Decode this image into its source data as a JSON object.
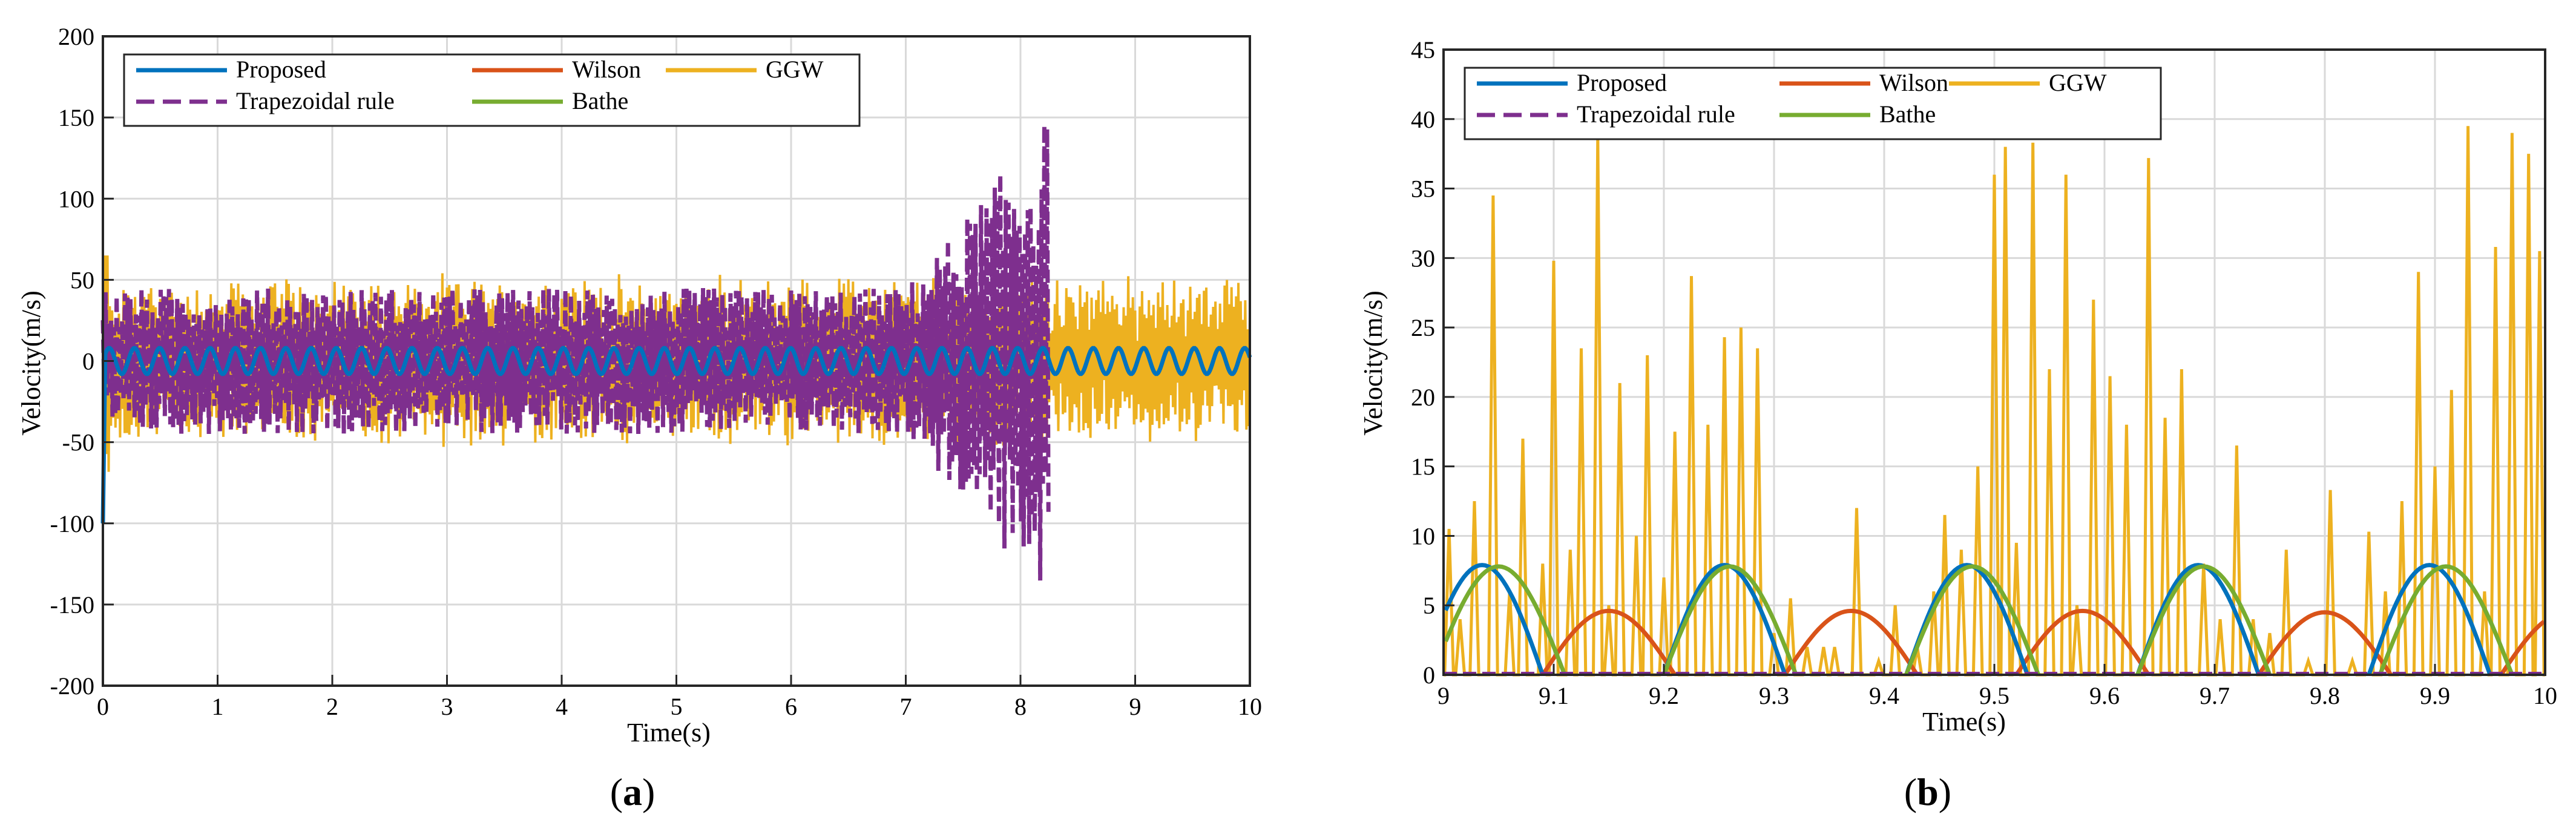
{
  "chart_data": [
    {
      "type": "line",
      "panel_label": "(a)",
      "caption_parts": [
        "(",
        "a",
        ")"
      ],
      "xlabel": "Time(s)",
      "ylabel": "Velocity(m/s)",
      "xlim": [
        0,
        10
      ],
      "ylim": [
        -200,
        200
      ],
      "xticks": [
        0,
        1,
        2,
        3,
        4,
        5,
        6,
        7,
        8,
        9,
        10
      ],
      "yticks": [
        -200,
        -150,
        -100,
        -50,
        0,
        50,
        100,
        150,
        200
      ],
      "grid": true,
      "legend_location": "top-left",
      "legend": [
        {
          "name": "Proposed",
          "color": "#0072BD",
          "style": "solid"
        },
        {
          "name": "Wilson",
          "color": "#D95319",
          "style": "solid"
        },
        {
          "name": "GGW",
          "color": "#EDB120",
          "style": "solid"
        },
        {
          "name": "Trapezoidal rule",
          "color": "#7E2F8E",
          "style": "dashed"
        },
        {
          "name": "Bathe",
          "color": "#77AC30",
          "style": "solid"
        }
      ],
      "series": [
        {
          "name": "GGW",
          "description_values": {
            "t_start": 0,
            "t_end": 10,
            "typical_amplitude": 45,
            "max": 65,
            "min": -75
          }
        },
        {
          "name": "Trapezoidal rule",
          "description_values": {
            "t_start": 0,
            "t_end": 8.25,
            "typical_amplitude": 45,
            "max": 163,
            "min": -140,
            "growth_after": 7.0
          }
        },
        {
          "name": "Proposed",
          "description_values": {
            "t_start": 0,
            "t_end": 10,
            "amplitude": 8,
            "period": 0.22,
            "initial_value": -100
          }
        }
      ]
    },
    {
      "type": "line",
      "panel_label": "(b)",
      "caption_parts": [
        "(",
        "b",
        ")"
      ],
      "xlabel": "Time(s)",
      "ylabel": "Velocity(m/s)",
      "xlim": [
        9,
        10
      ],
      "ylim": [
        0,
        45
      ],
      "xticks": [
        9,
        9.1,
        9.2,
        9.3,
        9.4,
        9.5,
        9.6,
        9.7,
        9.8,
        9.9,
        10
      ],
      "yticks": [
        0,
        5,
        10,
        15,
        20,
        25,
        30,
        35,
        40,
        45
      ],
      "grid": true,
      "legend_location": "top-left",
      "legend": [
        {
          "name": "Proposed",
          "color": "#0072BD",
          "style": "solid"
        },
        {
          "name": "Wilson",
          "color": "#D95319",
          "style": "solid"
        },
        {
          "name": "GGW",
          "color": "#EDB120",
          "style": "solid"
        },
        {
          "name": "Trapezoidal rule",
          "color": "#7E2F8E",
          "style": "dashed"
        },
        {
          "name": "Bathe",
          "color": "#77AC30",
          "style": "solid"
        }
      ],
      "series": [
        {
          "name": "Proposed",
          "arches": [
            [
              8.98,
              9.09,
              7.9
            ],
            [
              9.2,
              9.31,
              7.9
            ],
            [
              9.42,
              9.53,
              7.9
            ],
            [
              9.63,
              9.74,
              7.9
            ],
            [
              9.84,
              9.95,
              7.9
            ]
          ]
        },
        {
          "name": "Bathe",
          "arches": [
            [
              8.99,
              9.11,
              7.8
            ],
            [
              9.2,
              9.32,
              7.8
            ],
            [
              9.42,
              9.54,
              7.8
            ],
            [
              9.63,
              9.75,
              7.8
            ],
            [
              9.85,
              9.97,
              7.8
            ]
          ]
        },
        {
          "name": "Wilson",
          "arches": [
            [
              9.09,
              9.21,
              4.6
            ],
            [
              9.31,
              9.43,
              4.6
            ],
            [
              9.52,
              9.64,
              4.6
            ],
            [
              9.74,
              9.86,
              4.5
            ],
            [
              9.96,
              10.08,
              4.5
            ]
          ]
        },
        {
          "name": "Trapezoidal rule",
          "x": [
            9,
            10
          ],
          "y": [
            0,
            0
          ]
        },
        {
          "name": "GGW",
          "spikes": [
            [
              9.005,
              10.5
            ],
            [
              9.015,
              4
            ],
            [
              9.028,
              12.5
            ],
            [
              9.045,
              34.5
            ],
            [
              9.06,
              6
            ],
            [
              9.072,
              17
            ],
            [
              9.09,
              8
            ],
            [
              9.1,
              29.8
            ],
            [
              9.115,
              9
            ],
            [
              9.125,
              23.5
            ],
            [
              9.14,
              38.8
            ],
            [
              9.15,
              5
            ],
            [
              9.16,
              21
            ],
            [
              9.175,
              10
            ],
            [
              9.185,
              23
            ],
            [
              9.2,
              7
            ],
            [
              9.21,
              17.5
            ],
            [
              9.225,
              28.7
            ],
            [
              9.24,
              18
            ],
            [
              9.255,
              24.3
            ],
            [
              9.27,
              25
            ],
            [
              9.285,
              23.5
            ],
            [
              9.3,
              3
            ],
            [
              9.315,
              5.5
            ],
            [
              9.33,
              2
            ],
            [
              9.345,
              2
            ],
            [
              9.355,
              2
            ],
            [
              9.375,
              12
            ],
            [
              9.395,
              1
            ],
            [
              9.41,
              5
            ],
            [
              9.43,
              2
            ],
            [
              9.445,
              6
            ],
            [
              9.455,
              11.5
            ],
            [
              9.47,
              9
            ],
            [
              9.485,
              15
            ],
            [
              9.5,
              36
            ],
            [
              9.51,
              38
            ],
            [
              9.52,
              9.5
            ],
            [
              9.535,
              38.3
            ],
            [
              9.55,
              22
            ],
            [
              9.565,
              36
            ],
            [
              9.575,
              5
            ],
            [
              9.59,
              27
            ],
            [
              9.605,
              21.5
            ],
            [
              9.62,
              18
            ],
            [
              9.64,
              37.2
            ],
            [
              9.655,
              18.5
            ],
            [
              9.67,
              22
            ],
            [
              9.69,
              8
            ],
            [
              9.705,
              4
            ],
            [
              9.72,
              16.5
            ],
            [
              9.735,
              4
            ],
            [
              9.75,
              3
            ],
            [
              9.765,
              9
            ],
            [
              9.785,
              1
            ],
            [
              9.805,
              13.3
            ],
            [
              9.825,
              1
            ],
            [
              9.84,
              10.3
            ],
            [
              9.855,
              6
            ],
            [
              9.87,
              12.5
            ],
            [
              9.885,
              29
            ],
            [
              9.9,
              15
            ],
            [
              9.915,
              20.5
            ],
            [
              9.93,
              39.5
            ],
            [
              9.945,
              6
            ],
            [
              9.955,
              30.8
            ],
            [
              9.97,
              39
            ],
            [
              9.985,
              37.5
            ],
            [
              9.995,
              30.5
            ]
          ]
        }
      ]
    }
  ]
}
